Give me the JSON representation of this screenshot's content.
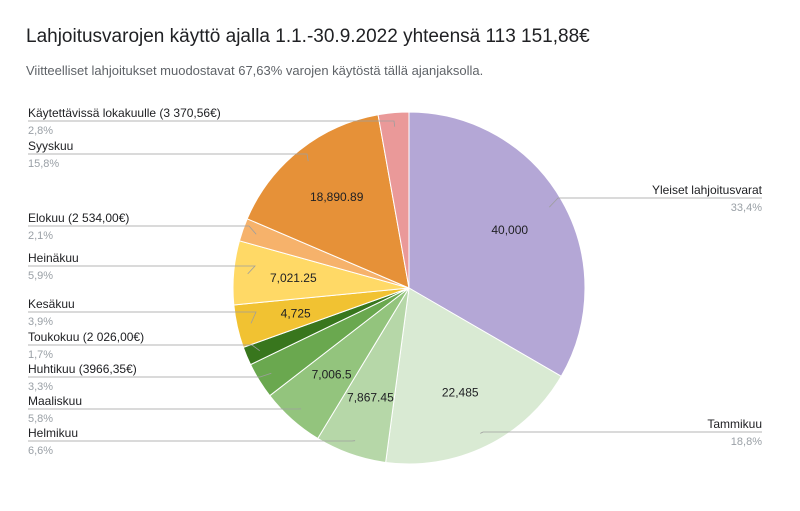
{
  "chart_data": {
    "type": "pie",
    "title": "Lahjoitusvarojen käyttö ajalla 1.1.-30.9.2022 yhteensä 113 151,88€",
    "subtitle": "Viitteelliset lahjoitukset muodostavat 67,63% varojen käytöstä tällä ajanjaksolla.",
    "slices": [
      {
        "label": "Yleiset lahjoitusvarat",
        "percent_label": "33,4%",
        "value": 40000,
        "value_label": "40,000",
        "color": "#b4a7d6"
      },
      {
        "label": "Tammikuu",
        "percent_label": "18,8%",
        "value": 22485,
        "value_label": "22,485",
        "color": "#d9ead3"
      },
      {
        "label": "Helmikuu",
        "percent_label": "6,6%",
        "value": 7867.45,
        "value_label": "7,867.45",
        "color": "#b6d7a8"
      },
      {
        "label": "Maaliskuu",
        "percent_label": "5,8%",
        "value": 7006.5,
        "value_label": "7,006.5",
        "color": "#93c47d"
      },
      {
        "label": "Huhtikuu (3966,35€)",
        "percent_label": "3,3%",
        "value": 3966.35,
        "value_label": "",
        "color": "#6aa84f"
      },
      {
        "label": "Toukokuu (2 026,00€)",
        "percent_label": "1,7%",
        "value": 2026,
        "value_label": "",
        "color": "#38761d"
      },
      {
        "label": "Kesäkuu",
        "percent_label": "3,9%",
        "value": 4725,
        "value_label": "4,725",
        "color": "#f1c232"
      },
      {
        "label": "Heinäkuu",
        "percent_label": "5,9%",
        "value": 7021.25,
        "value_label": "7,021.25",
        "color": "#ffd966"
      },
      {
        "label": "Elokuu (2 534,00€)",
        "percent_label": "2,1%",
        "value": 2534,
        "value_label": "",
        "color": "#f6b26b"
      },
      {
        "label": "Syyskuu",
        "percent_label": "15,8%",
        "value": 18890.89,
        "value_label": "18,890.89",
        "color": "#e69138"
      },
      {
        "label": "Käytettävissä lokakuulle (3 370,56€)",
        "percent_label": "2,8%",
        "value": 3370.56,
        "value_label": "",
        "color": "#ea9999"
      }
    ],
    "start_angle": "12 o'clock",
    "direction": "clockwise",
    "legend": "callout labels"
  }
}
